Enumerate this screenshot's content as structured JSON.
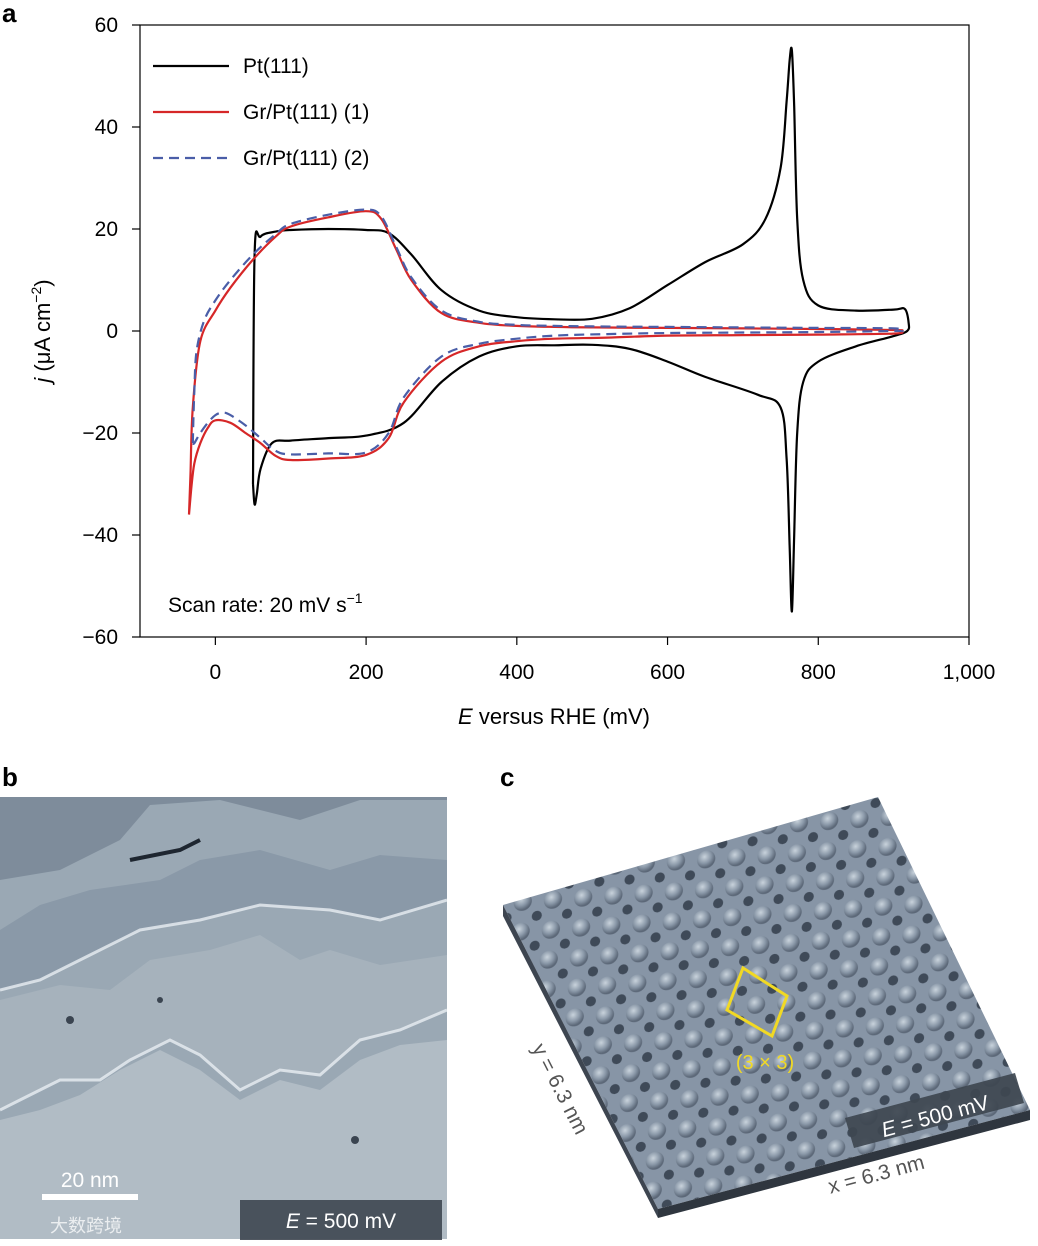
{
  "chart_data": {
    "type": "line",
    "panel": "a",
    "xlabel_italic": "E",
    "xlabel_rest": " versus RHE (mV)",
    "ylabel_italic": "j",
    "ylabel_rest": " (μA cm",
    "ylabel_sup": "−2",
    "ylabel_close": ")",
    "xlim": [
      -100,
      1000
    ],
    "ylim": [
      -60,
      60
    ],
    "xticks": [
      0,
      200,
      400,
      600,
      800,
      1000
    ],
    "xtick_labels": [
      "0",
      "200",
      "400",
      "600",
      "800",
      "1,000"
    ],
    "yticks": [
      60,
      40,
      20,
      0,
      -20,
      -40,
      -60
    ],
    "ytick_labels": [
      "60",
      "40",
      "20",
      "0",
      "−20",
      "−40",
      "−60"
    ],
    "annotation": "Scan rate: 20 mV s",
    "annotation_sup": "−1",
    "legend_position": "top-left",
    "series": [
      {
        "name": "Pt(111)",
        "color": "#000000",
        "dash": "solid",
        "x": [
          50,
          52,
          60,
          80,
          100,
          150,
          200,
          230,
          260,
          300,
          350,
          400,
          450,
          500,
          550,
          600,
          650,
          700,
          730,
          750,
          758,
          762,
          765,
          768,
          772,
          780,
          800,
          850,
          900,
          915,
          920,
          918,
          900,
          850,
          800,
          780,
          772,
          768,
          765,
          762,
          758,
          750,
          720,
          650,
          600,
          550,
          500,
          450,
          400,
          350,
          300,
          250,
          200,
          150,
          100,
          75,
          60,
          55,
          52,
          50
        ],
        "y": [
          -30,
          15,
          18.5,
          19.5,
          19.8,
          20,
          19.8,
          19.2,
          15,
          8,
          4,
          2.7,
          2.3,
          2.4,
          4.5,
          9,
          13.5,
          17,
          22,
          32,
          45,
          53,
          55,
          44,
          22,
          10,
          5,
          4,
          4.2,
          4.3,
          1.5,
          0,
          -1,
          -3,
          -6,
          -10,
          -20,
          -40,
          -55,
          -42,
          -25,
          -15,
          -12.5,
          -9,
          -6,
          -3.5,
          -2.7,
          -2.8,
          -3,
          -5,
          -10,
          -18,
          -20.5,
          -21,
          -21.5,
          -22,
          -27,
          -32,
          -34,
          -30
        ]
      },
      {
        "name": "Gr/Pt(111) (1)",
        "color": "#d62728",
        "dash": "solid",
        "x": [
          -35,
          -33,
          -30,
          -20,
          0,
          20,
          50,
          80,
          100,
          150,
          200,
          220,
          240,
          260,
          300,
          350,
          400,
          450,
          500,
          600,
          700,
          800,
          900,
          910,
          900,
          800,
          700,
          600,
          520,
          450,
          400,
          350,
          300,
          250,
          230,
          200,
          150,
          100,
          80,
          60,
          40,
          20,
          0,
          -10,
          -20,
          -28,
          -32,
          -35
        ],
        "y": [
          -36,
          -28,
          -15,
          -2,
          4,
          8.5,
          14,
          18.5,
          20.5,
          22.3,
          23.5,
          22,
          16,
          10,
          3.5,
          1.6,
          1,
          0.8,
          0.7,
          0.6,
          0.5,
          0.4,
          0.2,
          0,
          -0.5,
          -0.7,
          -0.8,
          -0.9,
          -1.3,
          -1.5,
          -2,
          -3,
          -6,
          -14,
          -21,
          -24.3,
          -25,
          -25.3,
          -24.5,
          -22,
          -20,
          -18,
          -17.5,
          -19,
          -22,
          -26,
          -31,
          -36
        ]
      },
      {
        "name": "Gr/Pt(111) (2)",
        "color": "#4a5ea8",
        "dash": "dashed",
        "x": [
          -30,
          -28,
          -25,
          -15,
          0,
          20,
          50,
          80,
          100,
          150,
          200,
          220,
          240,
          260,
          300,
          350,
          400,
          450,
          500,
          600,
          700,
          800,
          900,
          910,
          900,
          800,
          700,
          600,
          520,
          450,
          400,
          350,
          300,
          250,
          230,
          200,
          150,
          100,
          80,
          60,
          40,
          20,
          10,
          0,
          -10,
          -20,
          -28,
          -30
        ],
        "y": [
          -22,
          -12,
          -4,
          2,
          6,
          10,
          15,
          19,
          21,
          22.8,
          23.8,
          22.5,
          16.5,
          10.5,
          4,
          1.8,
          1.2,
          1,
          0.9,
          0.8,
          0.7,
          0.6,
          0.5,
          0,
          0,
          -0.2,
          -0.3,
          -0.4,
          -0.6,
          -0.9,
          -1.5,
          -2.5,
          -5,
          -13,
          -20,
          -23.8,
          -24,
          -24.2,
          -23.5,
          -21,
          -18.5,
          -16.5,
          -16,
          -16.5,
          -18,
          -20,
          -22,
          -22
        ]
      }
    ]
  },
  "panel_b": {
    "label": "b",
    "scale_bar": "20 nm",
    "potential_italic": "E",
    "potential_rest": " = 500 mV",
    "watermark": "大数跨境"
  },
  "panel_c": {
    "label": "c",
    "cell_label": "(3 × 3)",
    "x_dim": "x = 6.3 nm",
    "y_dim": "y = 6.3 nm",
    "potential_italic": "E",
    "potential_rest": " = 500 mV"
  }
}
